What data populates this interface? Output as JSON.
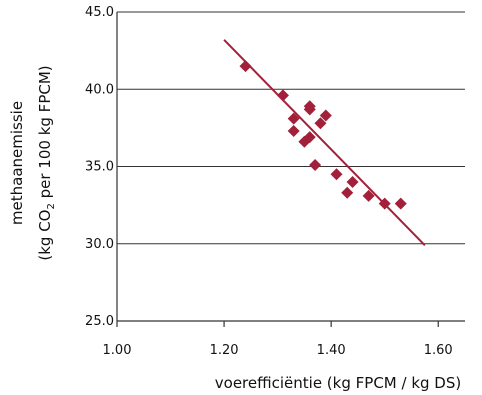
{
  "chart_data": {
    "type": "scatter",
    "title": "",
    "xlabel": "voerefficiëntie (kg FPCM / kg DS)",
    "ylabel_line1": "methaanemissie",
    "ylabel_line2_prefix": "(kg CO",
    "ylabel_line2_sub": "2",
    "ylabel_line2_suffix": " per 100 kg FPCM)",
    "xlim": [
      1.0,
      1.65
    ],
    "ylim": [
      25.0,
      45.0
    ],
    "x_ticks": [
      1.0,
      1.2,
      1.4,
      1.6
    ],
    "x_tick_labels": [
      "1.00",
      "1.20",
      "1.40",
      "1.60"
    ],
    "y_ticks": [
      25.0,
      30.0,
      35.0,
      40.0,
      45.0
    ],
    "y_tick_labels": [
      "25.0",
      "30.0",
      "35.0",
      "40.0",
      "45.0"
    ],
    "grid": "horizontal",
    "marker": "diamond",
    "colors": {
      "points": "#a3203a",
      "trendline": "#a3203a",
      "grid": "#333333",
      "axis": "#333333"
    },
    "points": [
      {
        "x": 1.24,
        "y": 41.5
      },
      {
        "x": 1.31,
        "y": 39.6
      },
      {
        "x": 1.33,
        "y": 38.1
      },
      {
        "x": 1.33,
        "y": 37.3
      },
      {
        "x": 1.35,
        "y": 36.6
      },
      {
        "x": 1.36,
        "y": 38.9
      },
      {
        "x": 1.36,
        "y": 38.7
      },
      {
        "x": 1.36,
        "y": 36.9
      },
      {
        "x": 1.38,
        "y": 37.8
      },
      {
        "x": 1.39,
        "y": 38.3
      },
      {
        "x": 1.37,
        "y": 35.1
      },
      {
        "x": 1.41,
        "y": 34.5
      },
      {
        "x": 1.44,
        "y": 34.0
      },
      {
        "x": 1.43,
        "y": 33.3
      },
      {
        "x": 1.47,
        "y": 33.1
      },
      {
        "x": 1.5,
        "y": 32.6
      },
      {
        "x": 1.53,
        "y": 32.6
      }
    ],
    "trendline": {
      "x": [
        1.2,
        1.575
      ],
      "y": [
        43.2,
        29.9
      ]
    }
  }
}
